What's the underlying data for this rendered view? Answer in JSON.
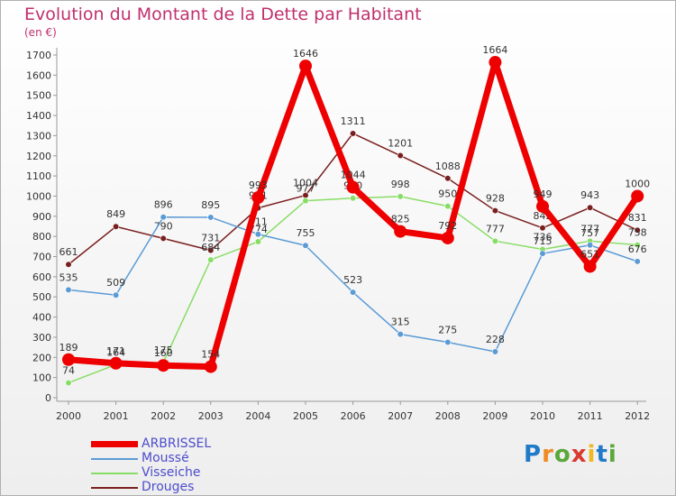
{
  "chart_data": {
    "type": "line",
    "title": "Evolution du Montant de la Dette par Habitant",
    "subtitle": "(en €)",
    "x": [
      "2000",
      "2001",
      "2002",
      "2003",
      "2004",
      "2005",
      "2006",
      "2007",
      "2008",
      "2009",
      "2010",
      "2011",
      "2012"
    ],
    "ylim": [
      0,
      1700
    ],
    "yticks": [
      "0",
      "100",
      "200",
      "300",
      "400",
      "500",
      "600",
      "700",
      "800",
      "900",
      "1000",
      "1100",
      "1200",
      "1300",
      "1400",
      "1500",
      "1600",
      "1700"
    ],
    "grid": false,
    "legend_position": "bottom-left",
    "series": [
      {
        "name": "Drouges",
        "color": "#7a1f1f",
        "values": [
          661,
          849,
          790,
          731,
          941,
          1004,
          1311,
          1201,
          1088,
          928,
          842,
          943,
          831
        ]
      },
      {
        "name": "Visseiche",
        "color": "#88dd66",
        "values": [
          74,
          164,
          175,
          684,
          774,
          977,
          990,
          998,
          950,
          777,
          736,
          777,
          758
        ]
      },
      {
        "name": "Moussé",
        "color": "#5b9bd5",
        "values": [
          535,
          509,
          896,
          895,
          811,
          755,
          523,
          315,
          275,
          228,
          715,
          757,
          676
        ]
      },
      {
        "name": "ARBRISSEL",
        "color": "#ee0000",
        "values": [
          189,
          171,
          160,
          154,
          993,
          1646,
          1044,
          825,
          792,
          1664,
          949,
          651,
          1000
        ]
      }
    ]
  },
  "brand": {
    "letters": [
      "P",
      "r",
      "o",
      "x",
      "i",
      "t",
      "i"
    ]
  }
}
